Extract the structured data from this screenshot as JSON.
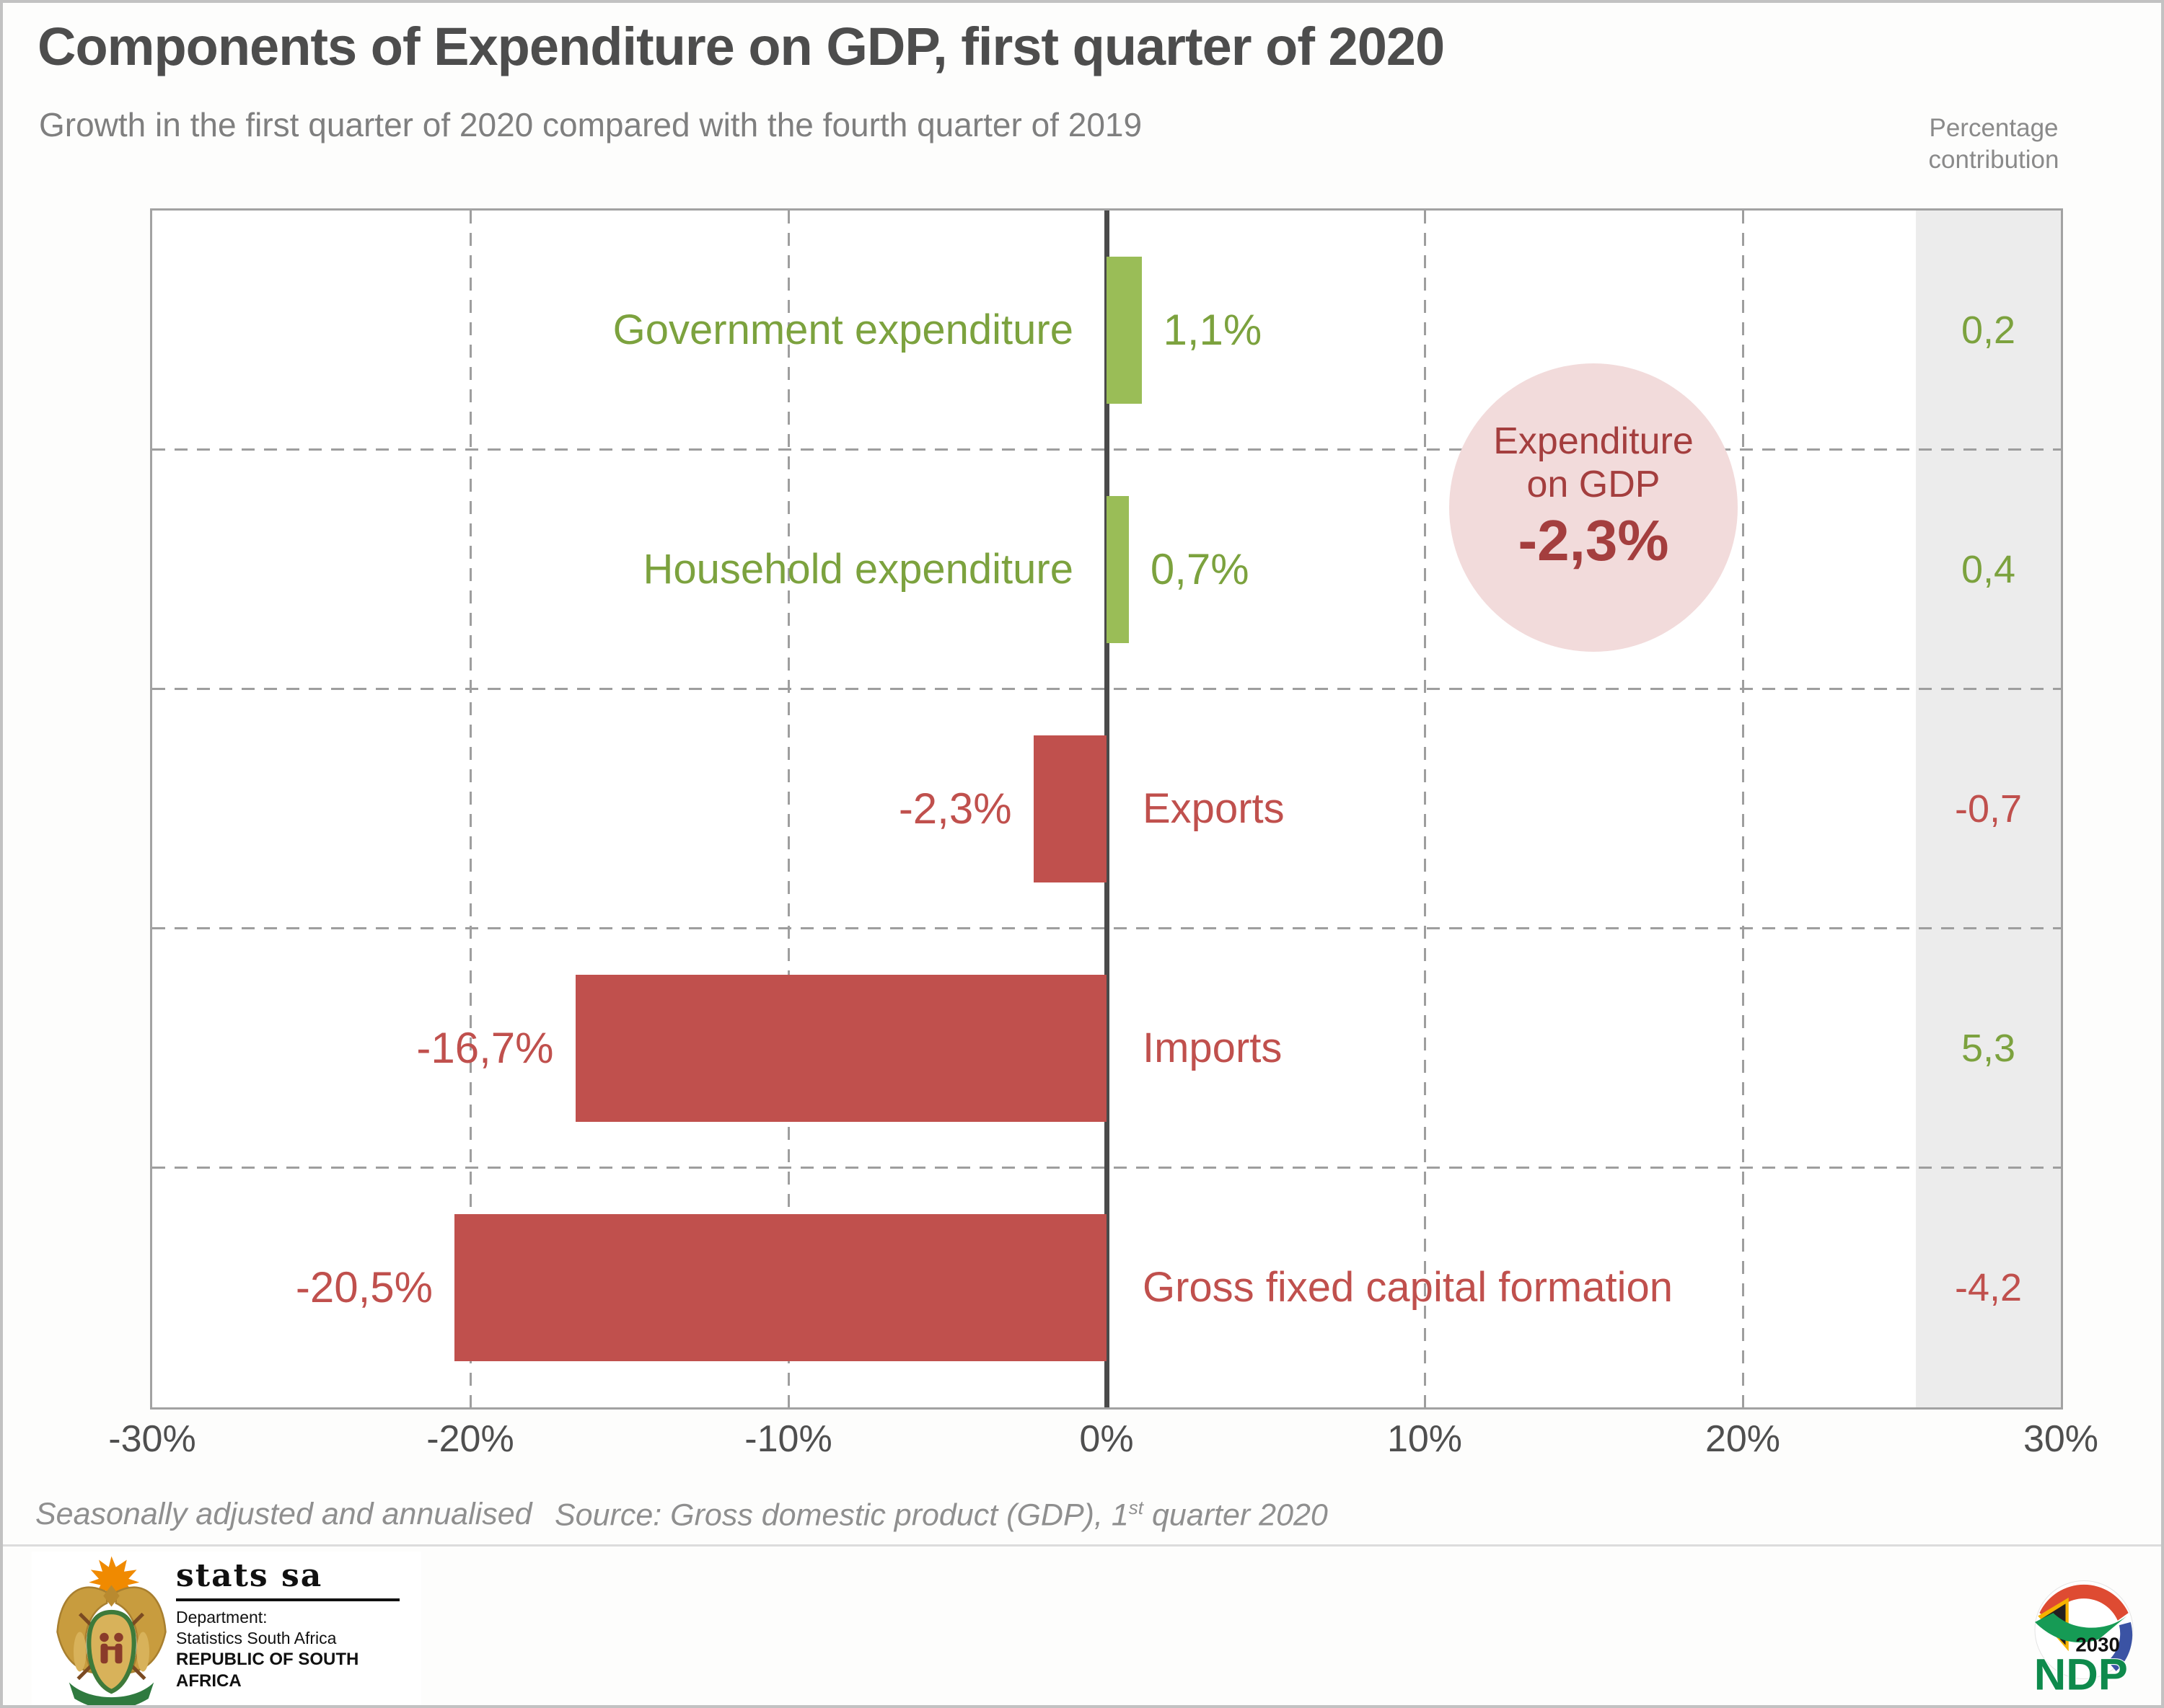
{
  "header": {
    "title": "Components of Expenditure on GDP, first quarter of 2020",
    "subtitle": "Growth in the first quarter of 2020 compared with the fourth quarter of 2019",
    "contribution_header": [
      "Percentage",
      "contribution"
    ]
  },
  "chart_data": {
    "type": "bar",
    "orientation": "horizontal",
    "categories": [
      "Government expenditure",
      "Household expenditure",
      "Exports",
      "Imports",
      "Gross fixed capital formation"
    ],
    "values": [
      1.1,
      0.7,
      -2.3,
      -16.7,
      -20.5
    ],
    "value_labels": [
      "1,1%",
      "0,7%",
      "-2,3%",
      "-16,7%",
      "-20,5%"
    ],
    "contributions": [
      0.2,
      0.4,
      -0.7,
      5.3,
      -4.2
    ],
    "contribution_labels": [
      "0,2",
      "0,4",
      "-0,7",
      "5,3",
      "-4,2"
    ],
    "xlim": [
      -30,
      30
    ],
    "x_tick_labels": [
      "-30%",
      "-20%",
      "-10%",
      "0%",
      "10%",
      "20%",
      "30%"
    ],
    "grid": "dashed",
    "legend": "none",
    "annotation": {
      "line1": "Expenditure",
      "line2": "on GDP",
      "value": "-2,3%"
    },
    "colors": {
      "positive": "#9ABD57",
      "positive_text": "#7CA23E",
      "negative": "#C0504D",
      "annotation_fill": "#F2DBDB",
      "annotation_text": "#A43E3E",
      "zero_line": "#4A4A4A"
    }
  },
  "footer": {
    "note": "Seasonally adjusted and annualised",
    "source_prefix": "Source: Gross domestic product (GDP), 1",
    "source_sup": "st",
    "source_suffix": " quarter 2020"
  },
  "logos": {
    "stats_sa": {
      "name": "stats sa",
      "department_label": "Department:",
      "department_name": "Statistics South Africa",
      "country": "REPUBLIC OF SOUTH AFRICA"
    },
    "ndp": {
      "acronym": "NDP",
      "year": "2030"
    }
  }
}
